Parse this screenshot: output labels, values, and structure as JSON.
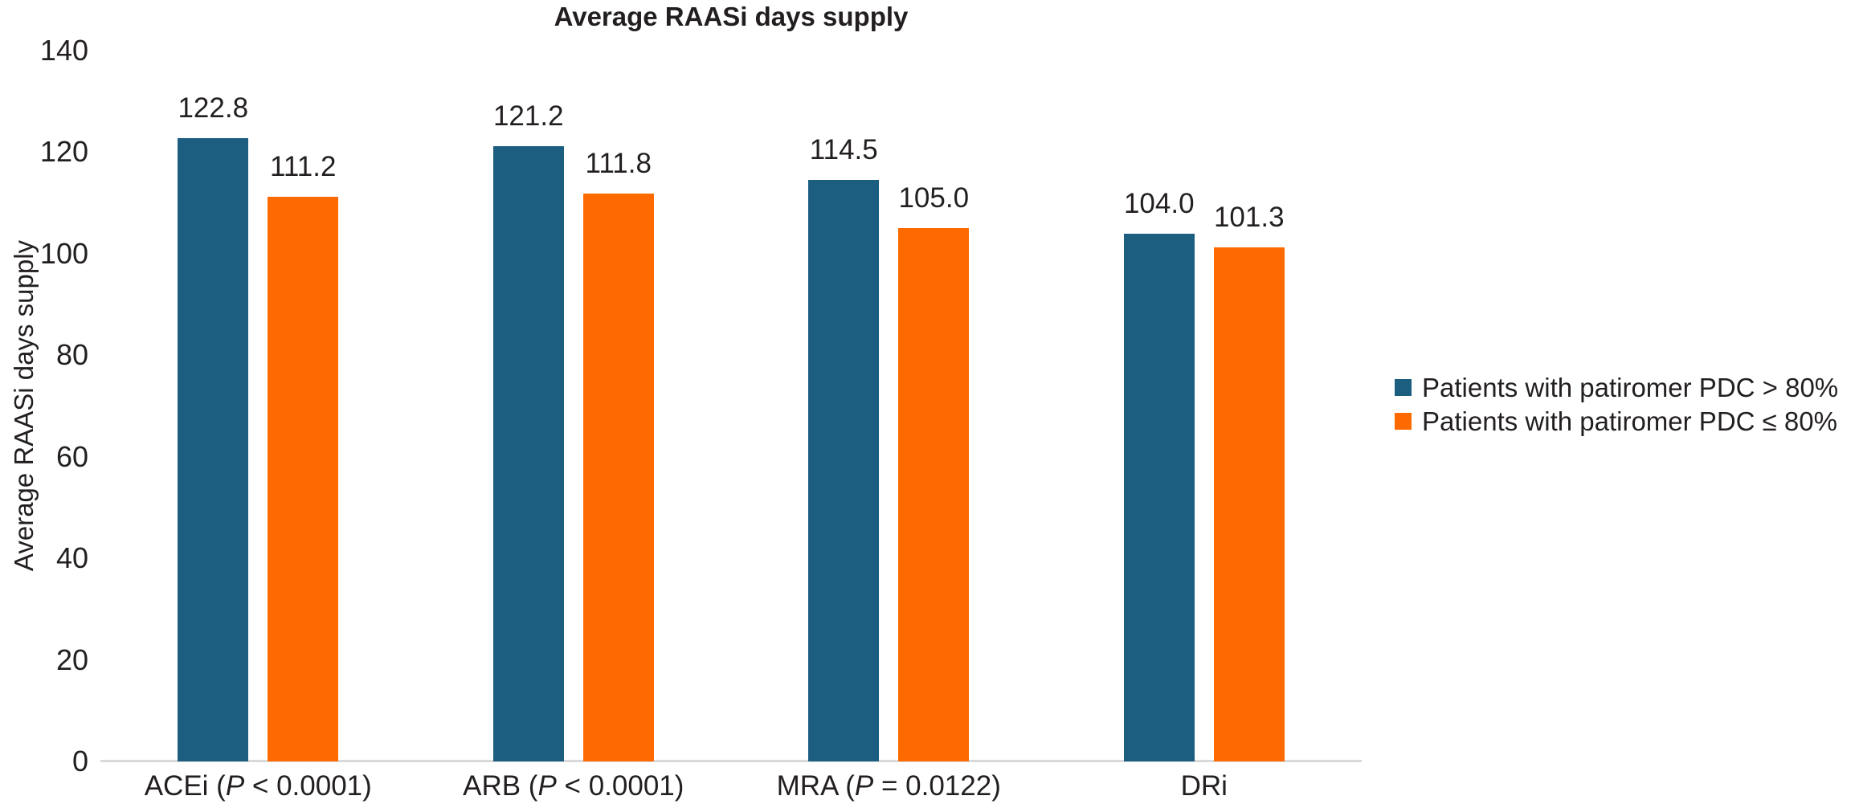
{
  "chart_data": {
    "type": "bar",
    "title": "Average RAASi days supply",
    "ylabel": "Average RAASi days supply",
    "ylim": [
      0,
      140
    ],
    "yticks": [
      0,
      20,
      40,
      60,
      80,
      100,
      120,
      140
    ],
    "grid": false,
    "legend_position": "right",
    "value_label_decimals": 1,
    "categories": [
      {
        "prefix": "ACEi (",
        "italic": "P",
        "suffix": " < 0.0001)"
      },
      {
        "prefix": "ARB (",
        "italic": "P",
        "suffix": " < 0.0001)"
      },
      {
        "prefix": "MRA (",
        "italic": "P",
        "suffix": " = 0.0122)"
      },
      {
        "prefix": "DRi",
        "italic": "",
        "suffix": ""
      }
    ],
    "series": [
      {
        "name": "Patients with patiromer PDC > 80%",
        "color": "#1B5E80",
        "values": [
          122.8,
          121.2,
          114.5,
          104.0
        ]
      },
      {
        "name": "Patients with patiromer PDC ≤ 80%",
        "color": "#FF6A00",
        "values": [
          111.2,
          111.8,
          105.0,
          101.3
        ]
      }
    ]
  },
  "colors": {
    "series_high_pdc": "#1B5E80",
    "series_low_pdc": "#FF6A00",
    "axis_line": "#D9D9D9",
    "text": "#231F20",
    "background": "#FFFFFF"
  }
}
